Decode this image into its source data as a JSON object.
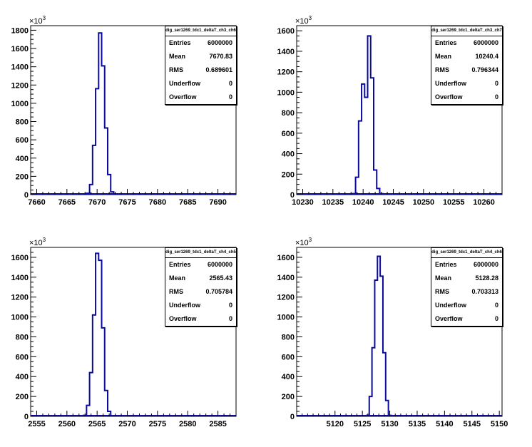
{
  "chart_data": [
    {
      "type": "histogram",
      "title": "dig_ser1269_tdc1_deltaT_ch3_ch6",
      "y_multiplier": "×10",
      "y_multiplier_exp": "3",
      "xlim": [
        7659,
        7693
      ],
      "ylim": [
        0,
        1850
      ],
      "x_ticks": [
        7660,
        7665,
        7670,
        7675,
        7680,
        7685,
        7690
      ],
      "y_ticks": [
        0,
        200,
        400,
        600,
        800,
        1000,
        1200,
        1400,
        1600,
        1800
      ],
      "bin_width": 0.5,
      "bins": [
        {
          "x": 7668.5,
          "y": 15
        },
        {
          "x": 7669.0,
          "y": 110
        },
        {
          "x": 7669.5,
          "y": 540
        },
        {
          "x": 7670.0,
          "y": 1160
        },
        {
          "x": 7670.5,
          "y": 1770
        },
        {
          "x": 7671.0,
          "y": 1410
        },
        {
          "x": 7671.5,
          "y": 730
        },
        {
          "x": 7672.0,
          "y": 220
        },
        {
          "x": 7672.5,
          "y": 30
        }
      ],
      "stats": [
        {
          "label": "Entries",
          "value": "6000000"
        },
        {
          "label": "Mean",
          "value": "7670.83"
        },
        {
          "label": "RMS",
          "value": "0.689601"
        },
        {
          "label": "Underflow",
          "value": "0"
        },
        {
          "label": "Overflow",
          "value": "0"
        }
      ]
    },
    {
      "type": "histogram",
      "title": "dig_ser1269_tdc1_deltaT_ch3_ch7",
      "y_multiplier": "×10",
      "y_multiplier_exp": "3",
      "xlim": [
        10229,
        10263
      ],
      "ylim": [
        0,
        1650
      ],
      "x_ticks": [
        10230,
        10235,
        10240,
        10245,
        10250,
        10255,
        10260
      ],
      "y_ticks": [
        0,
        200,
        400,
        600,
        800,
        1000,
        1200,
        1400,
        1600
      ],
      "bin_width": 0.5,
      "bins": [
        {
          "x": 10238.5,
          "y": 10
        },
        {
          "x": 10239.0,
          "y": 170
        },
        {
          "x": 10239.5,
          "y": 720
        },
        {
          "x": 10240.0,
          "y": 1080
        },
        {
          "x": 10240.5,
          "y": 950
        },
        {
          "x": 10241.0,
          "y": 1550
        },
        {
          "x": 10241.5,
          "y": 1140
        },
        {
          "x": 10242.0,
          "y": 240
        },
        {
          "x": 10242.5,
          "y": 60
        },
        {
          "x": 10243.0,
          "y": 10
        }
      ],
      "stats": [
        {
          "label": "Entries",
          "value": "6000000"
        },
        {
          "label": "Mean",
          "value": "10240.4"
        },
        {
          "label": "RMS",
          "value": "0.796344"
        },
        {
          "label": "Underflow",
          "value": "0"
        },
        {
          "label": "Overflow",
          "value": "0"
        }
      ]
    },
    {
      "type": "histogram",
      "title": "dig_ser1269_tdc1_deltaT_ch4_ch5",
      "y_multiplier": "×10",
      "y_multiplier_exp": "3",
      "xlim": [
        2554,
        2588
      ],
      "ylim": [
        0,
        1700
      ],
      "x_ticks": [
        2555,
        2560,
        2565,
        2570,
        2575,
        2580,
        2585
      ],
      "y_ticks": [
        0,
        200,
        400,
        600,
        800,
        1000,
        1200,
        1400,
        1600
      ],
      "bin_width": 0.5,
      "bins": [
        {
          "x": 2563.0,
          "y": 10
        },
        {
          "x": 2563.5,
          "y": 110
        },
        {
          "x": 2564.0,
          "y": 440
        },
        {
          "x": 2564.5,
          "y": 1020
        },
        {
          "x": 2565.0,
          "y": 1640
        },
        {
          "x": 2565.5,
          "y": 1570
        },
        {
          "x": 2566.0,
          "y": 890
        },
        {
          "x": 2566.5,
          "y": 260
        },
        {
          "x": 2567.0,
          "y": 50
        }
      ],
      "stats": [
        {
          "label": "Entries",
          "value": "6000000"
        },
        {
          "label": "Mean",
          "value": "2565.43"
        },
        {
          "label": "RMS",
          "value": "0.705784"
        },
        {
          "label": "Underflow",
          "value": "0"
        },
        {
          "label": "Overflow",
          "value": "0"
        }
      ]
    },
    {
      "type": "histogram",
      "title": "dig_ser1269_tdc1_deltaT_ch4_ch6",
      "y_multiplier": "×10",
      "y_multiplier_exp": "3",
      "xlim": [
        5113,
        5150.5
      ],
      "ylim": [
        0,
        1700
      ],
      "x_ticks": [
        5120,
        5125,
        5130,
        5135,
        5140,
        5145,
        5150
      ],
      "y_ticks": [
        0,
        200,
        400,
        600,
        800,
        1000,
        1200,
        1400,
        1600
      ],
      "bin_width": 0.5,
      "bins": [
        {
          "x": 5126.0,
          "y": 10
        },
        {
          "x": 5126.5,
          "y": 200
        },
        {
          "x": 5127.0,
          "y": 690
        },
        {
          "x": 5127.5,
          "y": 1370
        },
        {
          "x": 5128.0,
          "y": 1610
        },
        {
          "x": 5128.5,
          "y": 1410
        },
        {
          "x": 5129.0,
          "y": 640
        },
        {
          "x": 5129.5,
          "y": 160
        },
        {
          "x": 5130.0,
          "y": 10
        }
      ],
      "stats": [
        {
          "label": "Entries",
          "value": "6000000"
        },
        {
          "label": "Mean",
          "value": "5128.28"
        },
        {
          "label": "RMS",
          "value": "0.703313"
        },
        {
          "label": "Underflow",
          "value": "0"
        },
        {
          "label": "Overflow",
          "value": "0"
        }
      ]
    }
  ]
}
